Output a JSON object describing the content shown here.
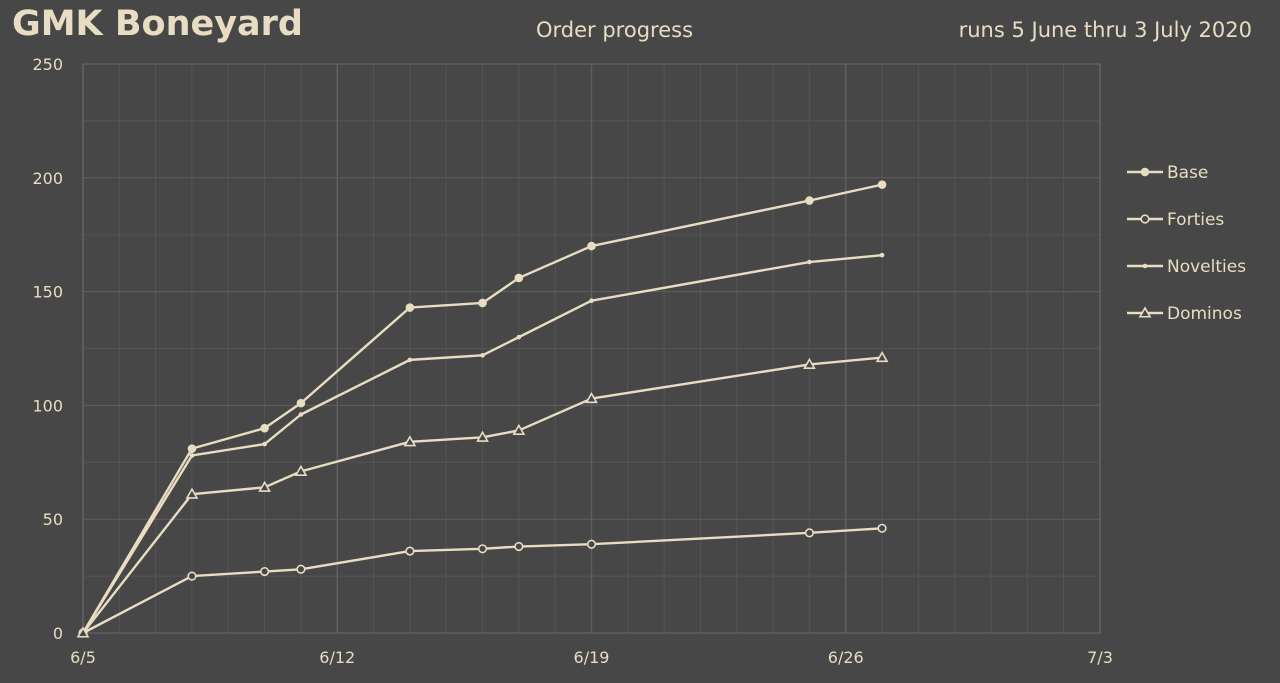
{
  "header": {
    "title": "GMK Boneyard",
    "subtitle": "Order progress",
    "dates": "runs 5 June thru 3 July 2020"
  },
  "colors": {
    "background": "#474747",
    "line": "#e8dcc2",
    "grid_major": "#5f5f5f",
    "grid_minor": "#545454"
  },
  "chart_data": {
    "type": "line",
    "title": "Order progress",
    "x_tick_labels": [
      "6/5",
      "6/12",
      "6/19",
      "6/26",
      "7/3"
    ],
    "x_ticks": [
      "2020-06-05",
      "2020-06-12",
      "2020-06-19",
      "2020-06-26",
      "2020-07-03"
    ],
    "xlim": [
      "2020-06-05",
      "2020-07-03"
    ],
    "ylim": [
      0,
      250
    ],
    "y_ticks": [
      0,
      50,
      100,
      150,
      200,
      250
    ],
    "grid": true,
    "legend_position": "right",
    "x": [
      "2020-06-05",
      "2020-06-08",
      "2020-06-10",
      "2020-06-11",
      "2020-06-14",
      "2020-06-16",
      "2020-06-17",
      "2020-06-19",
      "2020-06-25",
      "2020-06-27"
    ],
    "series": [
      {
        "name": "Base",
        "marker": "filled-circle",
        "values": [
          0,
          81,
          90,
          101,
          143,
          145,
          156,
          170,
          190,
          197
        ]
      },
      {
        "name": "Forties",
        "marker": "open-circle",
        "values": [
          0,
          25,
          27,
          28,
          36,
          37,
          38,
          39,
          44,
          46
        ]
      },
      {
        "name": "Novelties",
        "marker": "dot",
        "values": [
          0,
          78,
          83,
          96,
          120,
          122,
          130,
          146,
          163,
          166
        ]
      },
      {
        "name": "Dominos",
        "marker": "triangle",
        "values": [
          0,
          61,
          64,
          71,
          84,
          86,
          89,
          103,
          118,
          121
        ]
      }
    ]
  }
}
